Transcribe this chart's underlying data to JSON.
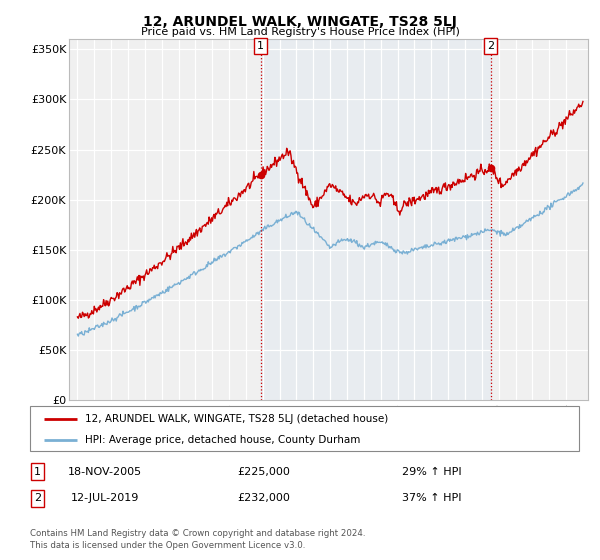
{
  "title": "12, ARUNDEL WALK, WINGATE, TS28 5LJ",
  "subtitle": "Price paid vs. HM Land Registry's House Price Index (HPI)",
  "legend_line1": "12, ARUNDEL WALK, WINGATE, TS28 5LJ (detached house)",
  "legend_line2": "HPI: Average price, detached house, County Durham",
  "annotation1_date": "18-NOV-2005",
  "annotation1_price": "£225,000",
  "annotation1_hpi": "29% ↑ HPI",
  "annotation2_date": "12-JUL-2019",
  "annotation2_price": "£232,000",
  "annotation2_hpi": "37% ↑ HPI",
  "footer1": "Contains HM Land Registry data © Crown copyright and database right 2024.",
  "footer2": "This data is licensed under the Open Government Licence v3.0.",
  "red_color": "#cc0000",
  "blue_color": "#7ab0d4",
  "shading_color": "#ddeeff",
  "marker1_x": 2005.88,
  "marker1_y": 225000,
  "marker2_x": 2019.53,
  "marker2_y": 232000,
  "vline1_x": 2005.88,
  "vline2_x": 2019.53,
  "ylim_max": 360000,
  "ylim_min": 0,
  "xlim_min": 1994.5,
  "xlim_max": 2025.3,
  "yticks": [
    0,
    50000,
    100000,
    150000,
    200000,
    250000,
    300000,
    350000
  ],
  "ytick_labels": [
    "£0",
    "£50K",
    "£100K",
    "£150K",
    "£200K",
    "£250K",
    "£300K",
    "£350K"
  ],
  "xticks": [
    1995,
    1996,
    1997,
    1998,
    1999,
    2000,
    2001,
    2002,
    2003,
    2004,
    2005,
    2006,
    2007,
    2008,
    2009,
    2010,
    2011,
    2012,
    2013,
    2014,
    2015,
    2016,
    2017,
    2018,
    2019,
    2020,
    2021,
    2022,
    2023,
    2024
  ]
}
